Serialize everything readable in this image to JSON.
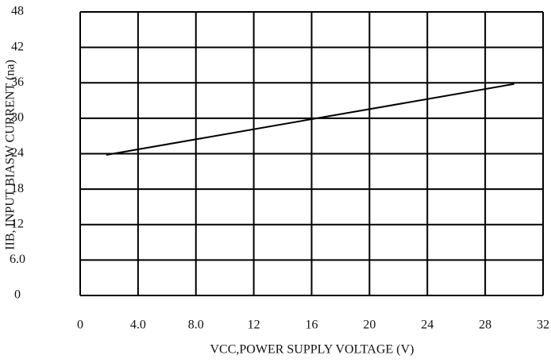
{
  "chart_data": {
    "type": "line",
    "x_label": "VCC,POWER SUPPLY VOLTAGE (V)",
    "y_label": "IIB, INPUT BIASW CURRENT (na)",
    "x": [
      1.8,
      30
    ],
    "series": [
      {
        "color": "#000000",
        "values": [
          23.8,
          35.8
        ]
      }
    ],
    "xlim": [
      0,
      32
    ],
    "xticks": [
      0,
      {
        "value": 4,
        "label": "4.0"
      },
      {
        "value": 8,
        "label": "8.0"
      },
      12,
      16,
      20,
      24,
      28,
      32
    ],
    "ylim": [
      0,
      48
    ],
    "yticks": [
      0,
      {
        "value": 6,
        "label": "6.0"
      },
      12,
      18,
      24,
      30,
      36,
      42,
      48
    ],
    "grid": true
  }
}
